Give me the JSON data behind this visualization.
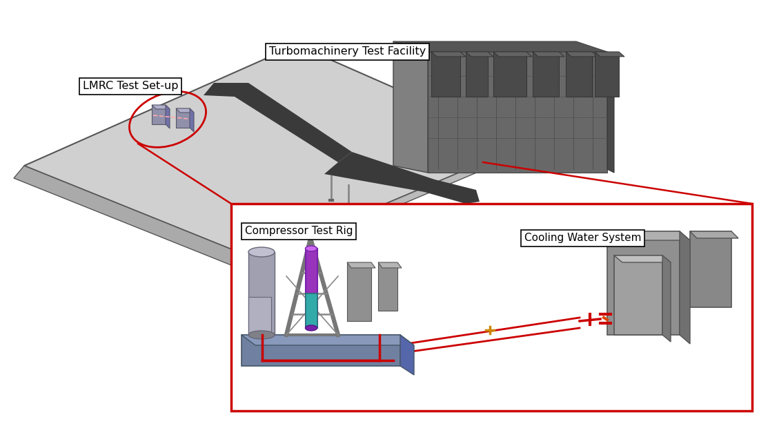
{
  "background_color": "#ffffff",
  "fig_width": 11.0,
  "fig_height": 6.3,
  "labels": {
    "lmrc": "LMRC Test Set-up",
    "turbo": "Turbomachinery Test Facility",
    "compressor": "Compressor Test Rig",
    "cooling": "Cooling Water System"
  },
  "red_color": "#cc0000",
  "platform_face": "#d0d0d0",
  "platform_edge": "#555555",
  "road_color": "#3a3a3a",
  "building_face": "#686868",
  "building_dark": "#484848",
  "building_light": "#888888",
  "gray_mid": "#909090",
  "gray_light": "#b5b5b5",
  "gray_dark": "#606060",
  "blue_base": "#7080a0",
  "purple_cyl": "#9933bb",
  "teal_cyl": "#33aaaa"
}
